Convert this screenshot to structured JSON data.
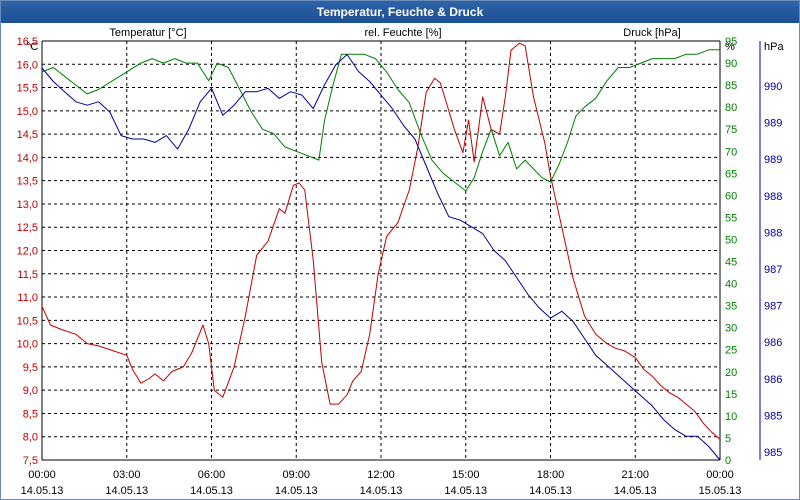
{
  "window": {
    "title": "Temperatur, Feuchte & Druck"
  },
  "colors": {
    "temperature": "#c00000",
    "humidity": "#008000",
    "pressure": "#000099",
    "grid": "#000000"
  },
  "chart_data": {
    "type": "line",
    "title": "Temperatur, Feuchte & Druck",
    "x_ticks": [
      {
        "time": "00:00",
        "date": "14.05.13"
      },
      {
        "time": "03:00",
        "date": "14.05.13"
      },
      {
        "time": "06:00",
        "date": "14.05.13"
      },
      {
        "time": "09:00",
        "date": "14.05.13"
      },
      {
        "time": "12:00",
        "date": "14.05.13"
      },
      {
        "time": "15:00",
        "date": "14.05.13"
      },
      {
        "time": "18:00",
        "date": "14.05.13"
      },
      {
        "time": "21:00",
        "date": "14.05.13"
      },
      {
        "time": "00:00",
        "date": "15.05.13"
      }
    ],
    "x_range_hours": [
      0,
      24
    ],
    "axes": {
      "temperature": {
        "label": "Temperatur [°C]",
        "unit": "°C",
        "range": [
          7.5,
          16.5
        ],
        "ticks": [
          "7,5",
          "8,0",
          "8,5",
          "9,0",
          "9,5",
          "10,0",
          "10,5",
          "11,0",
          "11,5",
          "12,0",
          "12,5",
          "13,0",
          "13,5",
          "14,0",
          "14,5",
          "15,0",
          "15,5",
          "16,0",
          "16,5"
        ]
      },
      "humidity": {
        "label": "rel. Feuchte [%]",
        "unit": "%",
        "range": [
          0,
          95
        ],
        "ticks": [
          "0",
          "5",
          "10",
          "15",
          "20",
          "25",
          "30",
          "35",
          "40",
          "45",
          "50",
          "55",
          "60",
          "65",
          "70",
          "75",
          "80",
          "85",
          "90",
          "95"
        ]
      },
      "pressure": {
        "label": "Druck [hPa]",
        "unit": "hPa",
        "range": [
          984.6,
          990.8
        ],
        "ticks": [
          "985",
          "985",
          "986",
          "986",
          "987",
          "987",
          "988",
          "988",
          "989",
          "989",
          "990"
        ]
      }
    },
    "series": [
      {
        "name": "Temperatur",
        "axis": "temperature",
        "x": [
          0,
          0.3,
          0.7,
          1.2,
          1.6,
          2.0,
          2.5,
          3.0,
          3.2,
          3.5,
          3.8,
          4.0,
          4.3,
          4.6,
          5.0,
          5.3,
          5.7,
          5.9,
          6.1,
          6.4,
          6.8,
          7.2,
          7.6,
          8.0,
          8.4,
          8.6,
          8.9,
          9.1,
          9.3,
          9.6,
          9.9,
          10.2,
          10.5,
          10.8,
          11.0,
          11.3,
          11.6,
          11.9,
          12.2,
          12.6,
          13.0,
          13.3,
          13.6,
          13.9,
          14.1,
          14.3,
          14.6,
          14.9,
          15.1,
          15.3,
          15.6,
          15.9,
          16.2,
          16.4,
          16.6,
          16.9,
          17.1,
          17.4,
          17.6,
          17.8,
          18.0,
          18.4,
          18.8,
          19.2,
          19.6,
          20.0,
          20.3,
          20.6,
          21.0,
          21.3,
          21.6,
          21.9,
          22.2,
          22.5,
          22.8,
          23.1,
          23.4,
          23.7,
          24.0
        ],
        "y": [
          10.8,
          10.4,
          10.3,
          10.2,
          10.0,
          9.95,
          9.85,
          9.75,
          9.45,
          9.15,
          9.25,
          9.35,
          9.2,
          9.4,
          9.5,
          9.8,
          10.4,
          10.0,
          9.0,
          8.85,
          9.5,
          10.6,
          11.9,
          12.2,
          12.9,
          12.8,
          13.4,
          13.45,
          13.3,
          11.8,
          9.6,
          8.7,
          8.7,
          8.9,
          9.2,
          9.4,
          10.2,
          11.5,
          12.3,
          12.6,
          13.3,
          14.2,
          15.4,
          15.7,
          15.6,
          15.2,
          14.6,
          14.1,
          14.8,
          13.9,
          15.3,
          14.6,
          14.5,
          15.3,
          16.3,
          16.45,
          16.4,
          15.3,
          14.8,
          14.3,
          13.6,
          12.5,
          11.4,
          10.6,
          10.2,
          10.0,
          9.9,
          9.85,
          9.7,
          9.45,
          9.3,
          9.1,
          8.95,
          8.85,
          8.7,
          8.55,
          8.3,
          8.1,
          7.95
        ]
      },
      {
        "name": "rel. Feuchte",
        "axis": "humidity",
        "x": [
          0,
          0.4,
          0.8,
          1.2,
          1.6,
          2.0,
          2.5,
          3.0,
          3.5,
          3.9,
          4.3,
          4.7,
          5.1,
          5.5,
          5.9,
          6.2,
          6.6,
          7.0,
          7.4,
          7.8,
          8.2,
          8.6,
          9.0,
          9.4,
          9.8,
          10.0,
          10.3,
          10.6,
          11.0,
          11.4,
          11.8,
          12.2,
          12.6,
          13.0,
          13.4,
          13.8,
          14.2,
          14.6,
          15.0,
          15.3,
          15.6,
          15.9,
          16.2,
          16.5,
          16.8,
          17.1,
          17.4,
          17.7,
          18.0,
          18.3,
          18.6,
          18.9,
          19.2,
          19.6,
          20.0,
          20.4,
          20.8,
          21.2,
          21.6,
          22.0,
          22.4,
          22.8,
          23.2,
          23.6,
          24.0
        ],
        "y": [
          88,
          89,
          87,
          85,
          83,
          84,
          86,
          88,
          90,
          91,
          90,
          91,
          90,
          90,
          86,
          90,
          89,
          84,
          79,
          75,
          74,
          71,
          70,
          69,
          68,
          77,
          85,
          92,
          92,
          92,
          91,
          88,
          84,
          81,
          74,
          68,
          65,
          63,
          61,
          64,
          70,
          75,
          69,
          72,
          66,
          68,
          66,
          64,
          63,
          67,
          72,
          78,
          80,
          82,
          86,
          89,
          89,
          90,
          91,
          91,
          91,
          92,
          92,
          93,
          93
        ]
      },
      {
        "name": "Druck",
        "axis": "pressure",
        "x": [
          0,
          0.4,
          0.8,
          1.2,
          1.6,
          2.0,
          2.4,
          2.8,
          3.2,
          3.6,
          4.0,
          4.4,
          4.8,
          5.2,
          5.6,
          6.0,
          6.4,
          6.8,
          7.2,
          7.6,
          8.0,
          8.4,
          8.8,
          9.2,
          9.6,
          10.0,
          10.4,
          10.8,
          11.2,
          11.6,
          12.0,
          12.4,
          12.8,
          13.2,
          13.6,
          14.0,
          14.4,
          14.8,
          15.2,
          15.6,
          16.0,
          16.4,
          16.8,
          17.2,
          17.6,
          18.0,
          18.4,
          18.8,
          19.2,
          19.6,
          20.0,
          20.4,
          20.8,
          21.2,
          21.6,
          22.0,
          22.4,
          22.8,
          23.2,
          23.6,
          24.0
        ],
        "y": [
          990.4,
          990.2,
          990.05,
          989.9,
          989.85,
          989.9,
          989.75,
          989.4,
          989.35,
          989.35,
          989.3,
          989.4,
          989.2,
          989.5,
          989.9,
          990.1,
          989.7,
          989.85,
          990.05,
          990.05,
          990.1,
          989.95,
          990.05,
          990.0,
          989.8,
          990.15,
          990.45,
          990.6,
          990.35,
          990.2,
          990.0,
          989.8,
          989.55,
          989.35,
          988.95,
          988.55,
          988.2,
          988.15,
          988.05,
          987.95,
          987.7,
          987.55,
          987.3,
          987.05,
          986.85,
          986.7,
          986.8,
          986.65,
          986.4,
          986.15,
          986.0,
          985.85,
          985.7,
          985.55,
          985.4,
          985.2,
          985.05,
          984.95,
          984.95,
          984.8,
          984.6
        ]
      }
    ]
  }
}
